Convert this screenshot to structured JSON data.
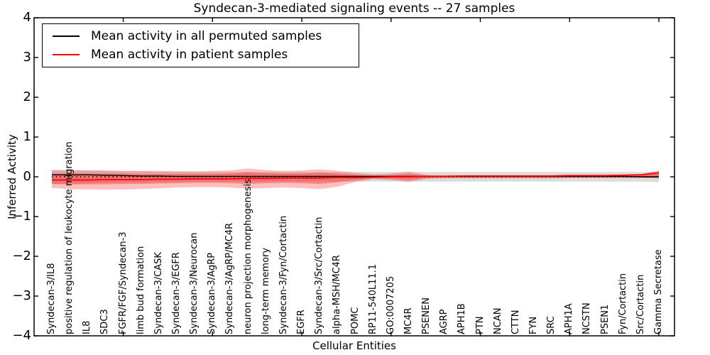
{
  "chart_data": {
    "type": "line",
    "title": "Syndecan-3-mediated signaling events -- 27 samples",
    "xlabel": "Cellular Entities",
    "ylabel": "Inferred Activity",
    "ylim": [
      -4,
      4
    ],
    "yticks": [
      4,
      3,
      2,
      1,
      0,
      -1,
      -2,
      -3,
      -4
    ],
    "x_major_tick_indices": [
      4,
      9,
      14,
      19,
      24,
      29,
      34
    ],
    "grid": false,
    "zero_line_style": "dotted",
    "legend_position": "upper left",
    "categories": [
      "Syndecan-3/IL8",
      "positive regulation of leukocyte migration",
      "IL8",
      "SDC3",
      "FGFR/FGF/Syndecan-3",
      "limb bud formation",
      "Syndecan-3/CASK",
      "Syndecan-3/EGFR",
      "Syndecan-3/Neurocan",
      "Syndecan-3/AgRP",
      "Syndecan-3/AgRP/MC4R",
      "neuron projection morphogenesis",
      "long-term memory",
      "Syndecan-3/Fyn/Cortactin",
      "EGFR",
      "Syndecan-3/Src/Cortactin",
      "alpha-MSH/MC4R",
      "POMC",
      "RP11-540L11.1",
      "GO:0007205",
      "MC4R",
      "PSENEN",
      "AGRP",
      "APH1B",
      "PTN",
      "NCAN",
      "CTTN",
      "FYN",
      "SRC",
      "APH1A",
      "NCSTN",
      "PSEN1",
      "Fyn/Cortactin",
      "Src/Cortactin",
      "Gamma Secretase"
    ],
    "series": [
      {
        "name": "Mean activity in all permuted samples",
        "color": "#000000",
        "values": [
          0.05,
          0.05,
          0.05,
          0.04,
          0.03,
          0.02,
          0.02,
          0.01,
          0.01,
          0.01,
          0.01,
          0.01,
          0.01,
          0.01,
          0.01,
          0.01,
          0.01,
          0.01,
          0.01,
          0.01,
          0.01,
          0.01,
          0.01,
          0.01,
          0.01,
          0.01,
          0.01,
          0.01,
          0.01,
          0.01,
          0.01,
          0.01,
          0.01,
          0.0,
          0.0
        ]
      },
      {
        "name": "Mean activity in patient samples",
        "color": "#ff0000",
        "values": [
          -0.08,
          -0.08,
          -0.08,
          -0.07,
          -0.07,
          -0.07,
          -0.06,
          -0.06,
          -0.05,
          -0.05,
          -0.05,
          -0.04,
          -0.04,
          -0.03,
          -0.03,
          -0.03,
          -0.02,
          -0.02,
          -0.01,
          0.0,
          0.0,
          0.01,
          0.01,
          0.02,
          0.02,
          0.02,
          0.02,
          0.02,
          0.02,
          0.03,
          0.03,
          0.03,
          0.04,
          0.05,
          0.1
        ]
      }
    ],
    "bands": [
      {
        "name": "permuted-samples-range",
        "color": "#808080",
        "opacity": 0.28,
        "upper": [
          0.18,
          0.17,
          0.16,
          0.15,
          0.14,
          0.14,
          0.13,
          0.13,
          0.12,
          0.12,
          0.12,
          0.12,
          0.12,
          0.12,
          0.12,
          0.12,
          0.12,
          0.12,
          0.12,
          0.12,
          0.12,
          0.12,
          0.12,
          0.12,
          0.12,
          0.12,
          0.12,
          0.12,
          0.12,
          0.12,
          0.12,
          0.12,
          0.12,
          0.12,
          0.13
        ],
        "lower": [
          -0.18,
          -0.17,
          -0.16,
          -0.15,
          -0.14,
          -0.14,
          -0.13,
          -0.13,
          -0.12,
          -0.12,
          -0.12,
          -0.12,
          -0.12,
          -0.12,
          -0.12,
          -0.12,
          -0.12,
          -0.12,
          -0.12,
          -0.12,
          -0.12,
          -0.12,
          -0.12,
          -0.12,
          -0.12,
          -0.12,
          -0.12,
          -0.12,
          -0.12,
          -0.12,
          -0.12,
          -0.12,
          -0.12,
          -0.12,
          -0.13
        ]
      },
      {
        "name": "patient-samples-range-outer",
        "color": "#ff0000",
        "opacity": 0.25,
        "upper": [
          0.16,
          0.16,
          0.16,
          0.16,
          0.15,
          0.15,
          0.15,
          0.14,
          0.14,
          0.15,
          0.16,
          0.21,
          0.17,
          0.15,
          0.16,
          0.19,
          0.15,
          0.1,
          0.06,
          0.08,
          0.13,
          0.05,
          0.04,
          0.04,
          0.04,
          0.04,
          0.04,
          0.04,
          0.04,
          0.04,
          0.04,
          0.04,
          0.05,
          0.06,
          0.16
        ],
        "lower": [
          -0.28,
          -0.31,
          -0.32,
          -0.32,
          -0.32,
          -0.31,
          -0.29,
          -0.27,
          -0.26,
          -0.26,
          -0.27,
          -0.3,
          -0.28,
          -0.27,
          -0.28,
          -0.31,
          -0.25,
          -0.13,
          -0.06,
          -0.08,
          -0.13,
          -0.05,
          -0.04,
          -0.04,
          -0.04,
          -0.04,
          -0.04,
          -0.04,
          -0.04,
          -0.03,
          -0.03,
          -0.03,
          -0.03,
          -0.03,
          -0.04
        ]
      },
      {
        "name": "patient-samples-range-inner",
        "color": "#ff0000",
        "opacity": 0.3,
        "upper": [
          0.08,
          0.08,
          0.08,
          0.08,
          0.08,
          0.07,
          0.07,
          0.07,
          0.07,
          0.07,
          0.08,
          0.11,
          0.09,
          0.08,
          0.08,
          0.1,
          0.08,
          0.05,
          0.03,
          0.04,
          0.07,
          0.03,
          0.02,
          0.02,
          0.02,
          0.02,
          0.02,
          0.02,
          0.02,
          0.02,
          0.02,
          0.02,
          0.03,
          0.03,
          0.12
        ],
        "lower": [
          -0.18,
          -0.19,
          -0.19,
          -0.19,
          -0.18,
          -0.18,
          -0.17,
          -0.16,
          -0.15,
          -0.15,
          -0.16,
          -0.18,
          -0.16,
          -0.15,
          -0.16,
          -0.18,
          -0.14,
          -0.08,
          -0.04,
          -0.05,
          -0.08,
          -0.03,
          -0.02,
          -0.02,
          -0.02,
          -0.02,
          -0.02,
          -0.02,
          -0.02,
          -0.02,
          -0.02,
          -0.02,
          -0.02,
          -0.02,
          -0.02
        ]
      }
    ],
    "legend": {
      "entries": [
        {
          "label": "Mean activity in all permuted samples",
          "color": "#000000"
        },
        {
          "label": "Mean activity in patient samples",
          "color": "#ff0000"
        }
      ]
    }
  }
}
